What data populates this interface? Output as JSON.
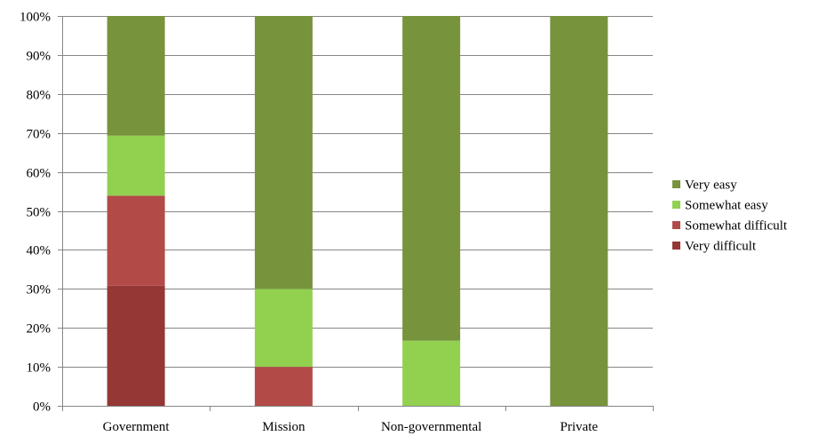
{
  "chart_data": {
    "type": "bar",
    "stacked": true,
    "categories": [
      "Government",
      "Mission",
      "Non-governmental",
      "Private"
    ],
    "series": [
      {
        "name": "Very difficult",
        "color": "#953735",
        "values": [
          30.8,
          0,
          0,
          0
        ]
      },
      {
        "name": "Somewhat difficult",
        "color": "#b24b48",
        "values": [
          23.1,
          10,
          0,
          0
        ]
      },
      {
        "name": "Somewhat easy",
        "color": "#92d050",
        "values": [
          15.4,
          20,
          16.7,
          0
        ]
      },
      {
        "name": "Very easy",
        "color": "#77933c",
        "values": [
          30.7,
          70,
          83.3,
          100
        ]
      }
    ],
    "y_ticks": [
      "0%",
      "10%",
      "20%",
      "30%",
      "40%",
      "50%",
      "60%",
      "70%",
      "80%",
      "90%",
      "100%"
    ],
    "ylim": [
      0,
      100
    ],
    "grid": true,
    "legend_position": "right",
    "legend_order": [
      "Very easy",
      "Somewhat easy",
      "Somewhat difficult",
      "Very difficult"
    ],
    "title": "",
    "xlabel": "",
    "ylabel": ""
  }
}
